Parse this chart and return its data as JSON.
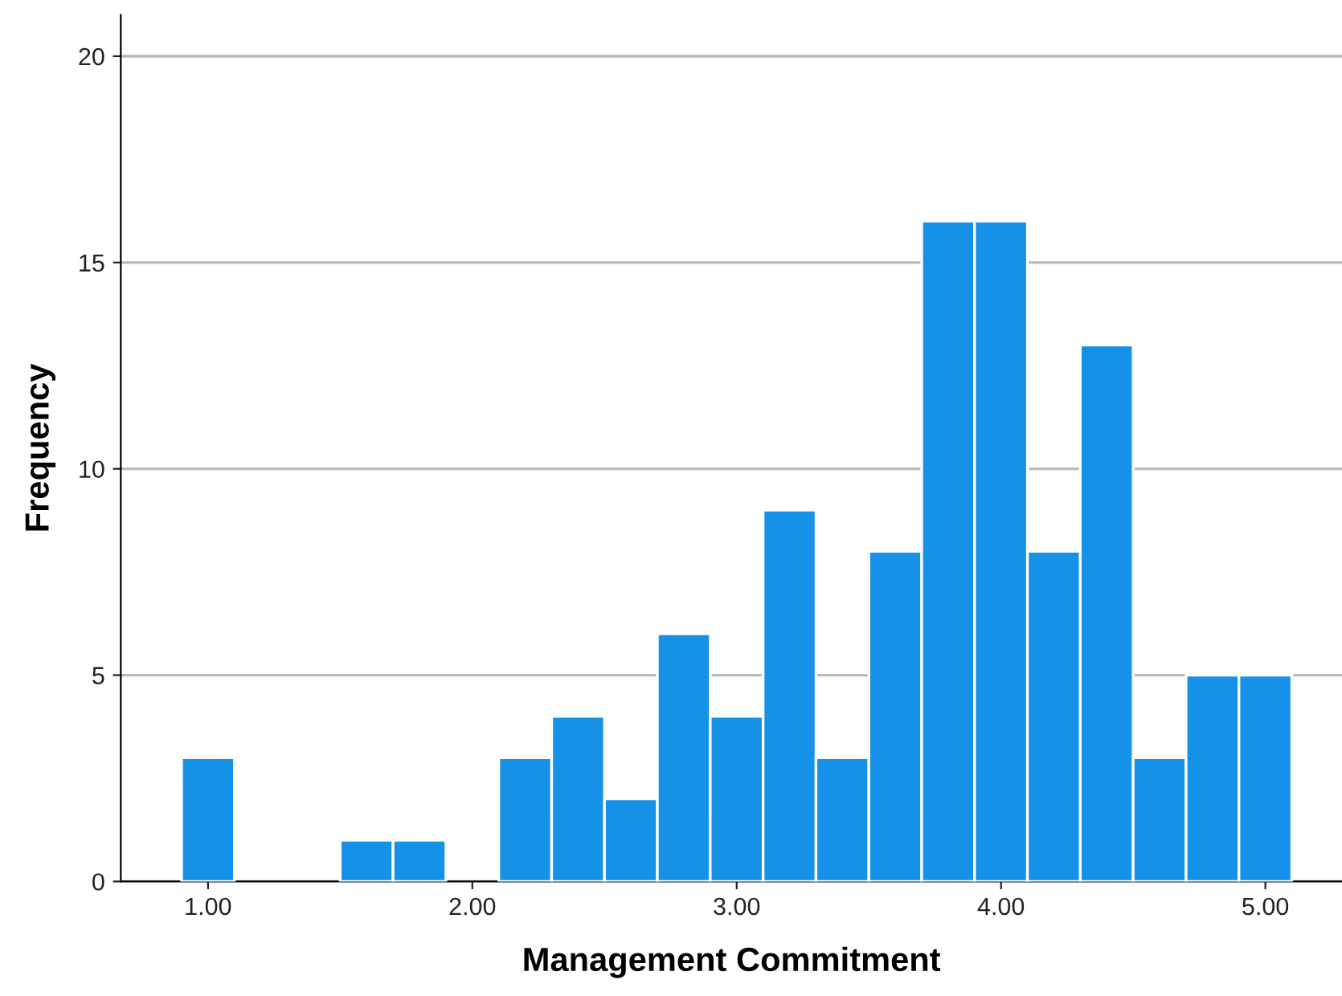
{
  "chart_data": {
    "type": "histogram",
    "xlabel": "Management Commitment",
    "ylabel": "Frequency",
    "bins": [
      0.9,
      1.1,
      1.3,
      1.5,
      1.7,
      1.9,
      2.1,
      2.3,
      2.5,
      2.7,
      2.9,
      3.1,
      3.3,
      3.5,
      3.7,
      3.9,
      4.1,
      4.3,
      4.5,
      4.7,
      4.9,
      5.1
    ],
    "values": [
      3,
      0,
      0,
      1,
      1,
      0,
      3,
      4,
      2,
      6,
      4,
      9,
      3,
      8,
      16,
      16,
      8,
      13,
      3,
      5,
      5
    ],
    "color": "#1591e8",
    "xlim": [
      0.67,
      5.29
    ],
    "ylim": [
      0,
      21
    ],
    "xticks": [
      {
        "value": 1,
        "label": "1.00"
      },
      {
        "value": 2,
        "label": "2.00"
      },
      {
        "value": 3,
        "label": "3.00"
      },
      {
        "value": 4,
        "label": "4.00"
      },
      {
        "value": 5,
        "label": "5.00"
      }
    ],
    "yticks": [
      0,
      5,
      10,
      15,
      20
    ],
    "grid": "y"
  }
}
